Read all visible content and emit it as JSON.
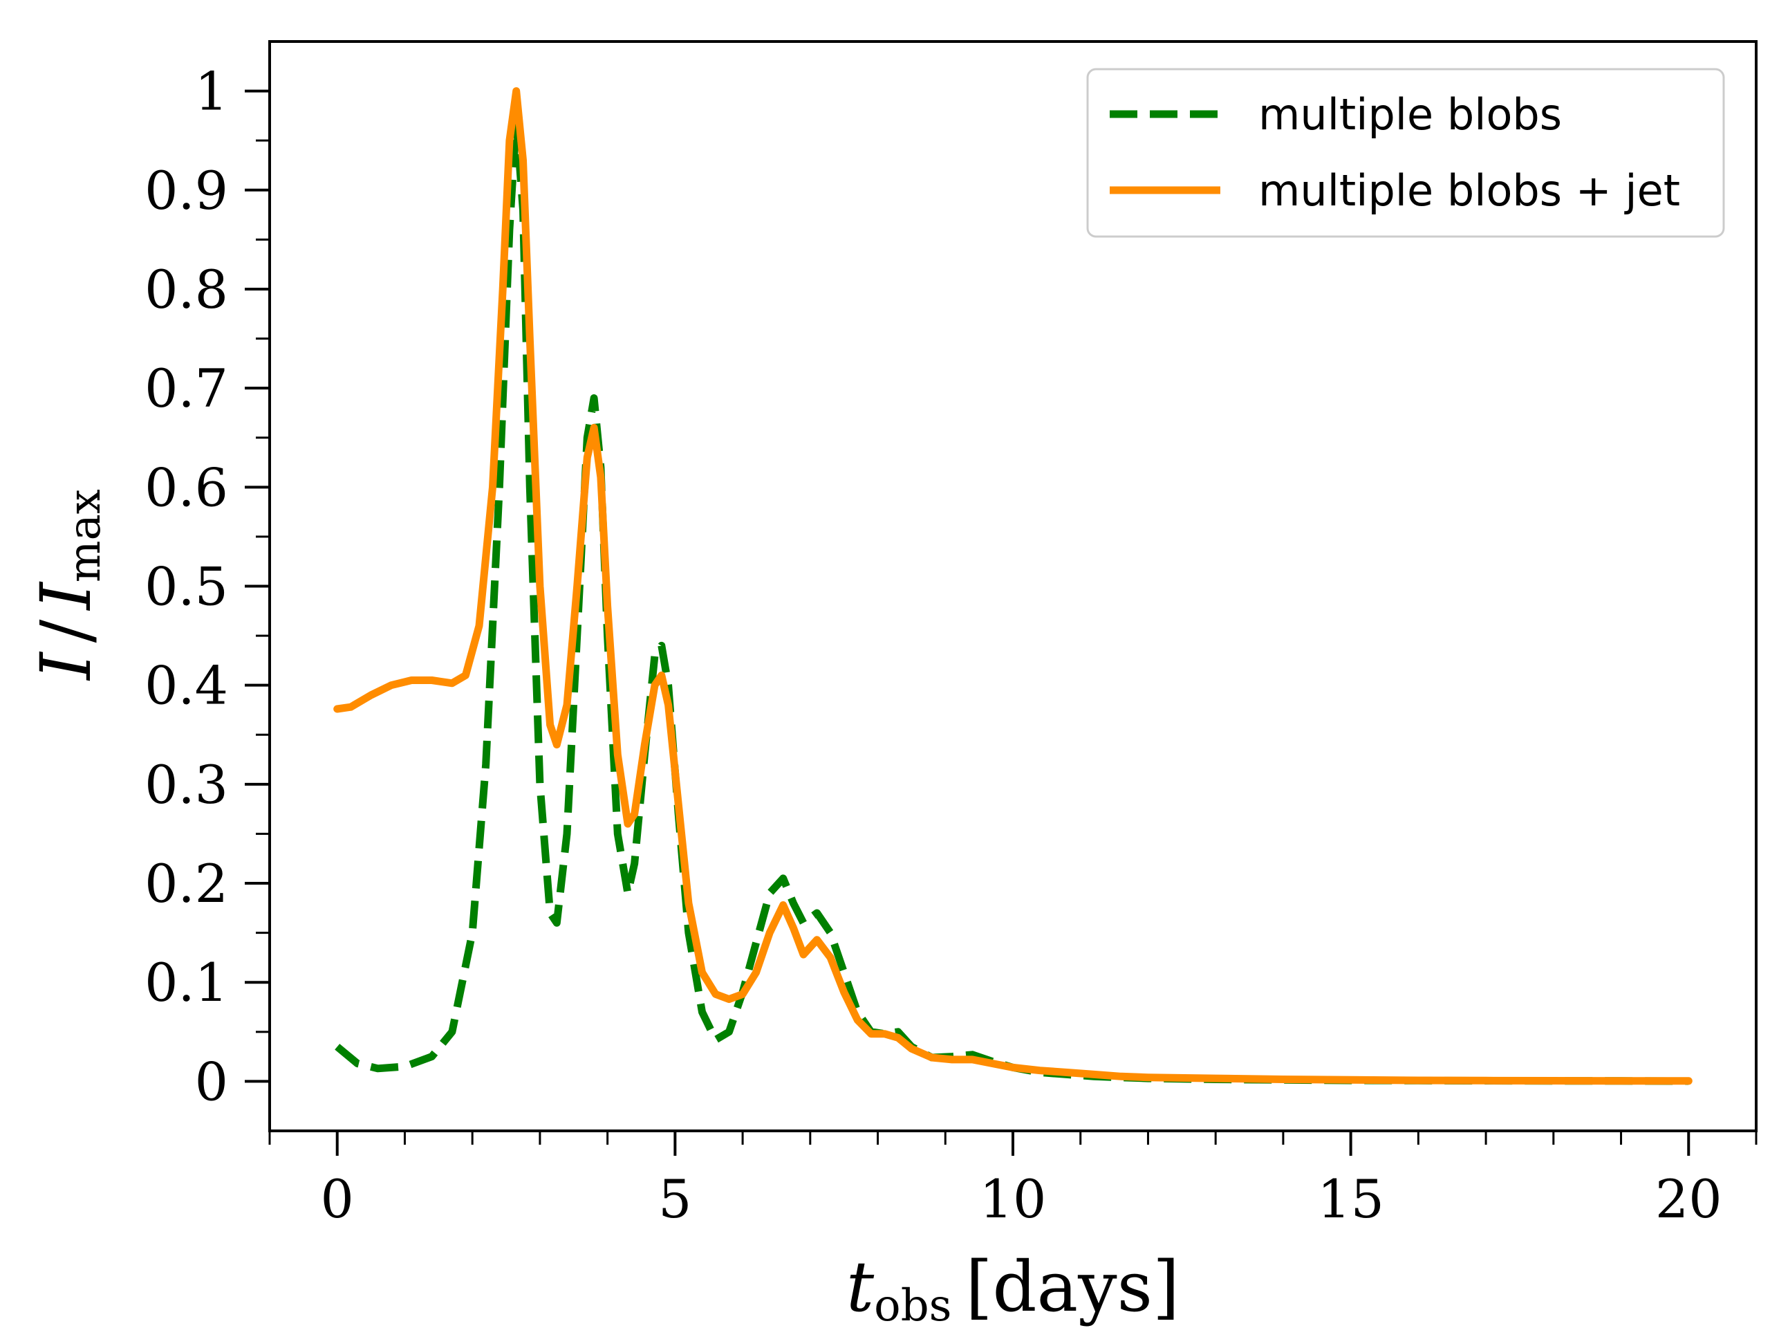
{
  "chart_data": {
    "type": "line",
    "title": "",
    "xlabel": "t_obs [days]",
    "ylabel": "I / I_max",
    "xlabel_parts": {
      "main": "t",
      "sub": "obs",
      "unit": "[days]"
    },
    "ylabel_parts": {
      "num": "I",
      "slash": "/",
      "den": "I",
      "den_sub": "max"
    },
    "xlim": [
      -1,
      21
    ],
    "ylim": [
      -0.05,
      1.05
    ],
    "grid": false,
    "legend_position": "top-right",
    "xticks": [
      0,
      5,
      10,
      15,
      20
    ],
    "xtick_labels": [
      "0",
      "5",
      "10",
      "15",
      "20"
    ],
    "yticks": [
      0,
      0.1,
      0.2,
      0.3,
      0.4,
      0.5,
      0.6,
      0.7,
      0.8,
      0.9,
      1
    ],
    "ytick_labels": [
      "0",
      "0.1",
      "0.2",
      "0.3",
      "0.4",
      "0.5",
      "0.6",
      "0.7",
      "0.8",
      "0.9",
      "1"
    ],
    "series": [
      {
        "name": "multiple blobs",
        "color": "#008000",
        "style": "dashed",
        "x": [
          0,
          0.3,
          0.6,
          1.0,
          1.4,
          1.7,
          2.0,
          2.2,
          2.4,
          2.55,
          2.65,
          2.75,
          2.85,
          3.0,
          3.15,
          3.25,
          3.4,
          3.55,
          3.7,
          3.8,
          3.9,
          4.0,
          4.15,
          4.3,
          4.4,
          4.55,
          4.7,
          4.8,
          4.9,
          5.05,
          5.2,
          5.4,
          5.6,
          5.8,
          6.0,
          6.2,
          6.4,
          6.6,
          6.75,
          6.9,
          7.1,
          7.3,
          7.5,
          7.7,
          7.9,
          8.1,
          8.3,
          8.5,
          8.8,
          9.1,
          9.4,
          9.7,
          10.0,
          10.4,
          10.8,
          11.2,
          11.6,
          12,
          13,
          14,
          15,
          16,
          17,
          18,
          19,
          20
        ],
        "values": [
          0.035,
          0.018,
          0.013,
          0.015,
          0.025,
          0.05,
          0.15,
          0.32,
          0.6,
          0.86,
          0.97,
          0.88,
          0.6,
          0.3,
          0.17,
          0.16,
          0.25,
          0.45,
          0.65,
          0.69,
          0.62,
          0.45,
          0.25,
          0.19,
          0.22,
          0.33,
          0.43,
          0.44,
          0.4,
          0.27,
          0.15,
          0.07,
          0.042,
          0.05,
          0.09,
          0.14,
          0.19,
          0.205,
          0.18,
          0.16,
          0.17,
          0.15,
          0.11,
          0.07,
          0.05,
          0.048,
          0.05,
          0.035,
          0.024,
          0.025,
          0.027,
          0.02,
          0.014,
          0.009,
          0.007,
          0.005,
          0.004,
          0.003,
          0.002,
          0.0015,
          0.001,
          0.0008,
          0.0006,
          0.0005,
          0.0004,
          0.0003
        ]
      },
      {
        "name": "multiple blobs + jet",
        "color": "#ff8c00",
        "style": "solid",
        "x": [
          0,
          0.2,
          0.5,
          0.8,
          1.1,
          1.4,
          1.7,
          1.9,
          2.1,
          2.3,
          2.45,
          2.55,
          2.65,
          2.75,
          2.85,
          3.0,
          3.15,
          3.25,
          3.4,
          3.55,
          3.7,
          3.8,
          3.9,
          4.0,
          4.15,
          4.3,
          4.4,
          4.55,
          4.7,
          4.8,
          4.9,
          5.05,
          5.2,
          5.4,
          5.6,
          5.8,
          6.0,
          6.2,
          6.4,
          6.6,
          6.75,
          6.9,
          7.1,
          7.3,
          7.5,
          7.7,
          7.9,
          8.1,
          8.3,
          8.5,
          8.8,
          9.1,
          9.4,
          9.7,
          10.0,
          10.4,
          10.8,
          11.2,
          11.6,
          12,
          13,
          14,
          15,
          16,
          17,
          18,
          19,
          20
        ],
        "values": [
          0.376,
          0.378,
          0.39,
          0.4,
          0.405,
          0.405,
          0.402,
          0.41,
          0.46,
          0.6,
          0.8,
          0.95,
          1.0,
          0.93,
          0.75,
          0.5,
          0.36,
          0.34,
          0.38,
          0.5,
          0.63,
          0.66,
          0.61,
          0.48,
          0.33,
          0.26,
          0.27,
          0.34,
          0.4,
          0.41,
          0.38,
          0.28,
          0.18,
          0.11,
          0.088,
          0.083,
          0.088,
          0.11,
          0.15,
          0.178,
          0.155,
          0.128,
          0.143,
          0.125,
          0.09,
          0.062,
          0.048,
          0.048,
          0.044,
          0.033,
          0.024,
          0.022,
          0.022,
          0.018,
          0.014,
          0.011,
          0.009,
          0.007,
          0.005,
          0.004,
          0.003,
          0.002,
          0.0015,
          0.001,
          0.0008,
          0.0006,
          0.0005,
          0.0004
        ]
      }
    ]
  }
}
